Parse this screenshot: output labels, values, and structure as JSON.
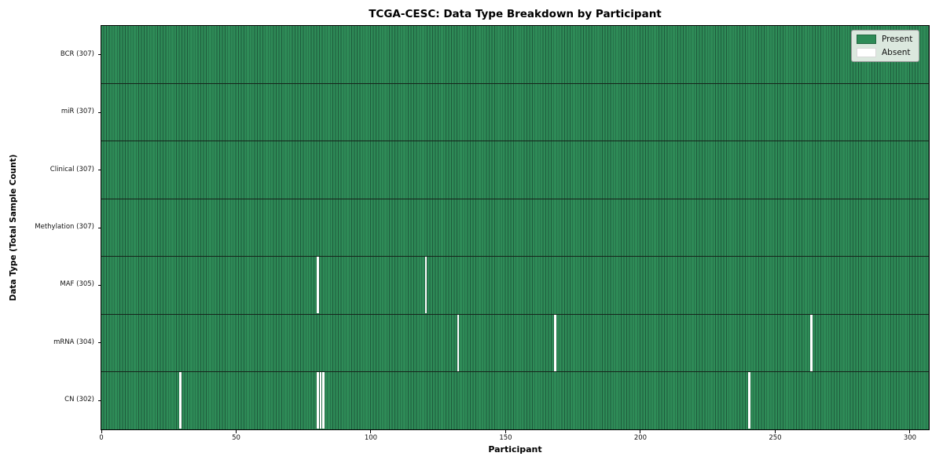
{
  "colors": {
    "present": "#2e8b57",
    "absent": "#ffffff",
    "cell_border": "#1e5b3c",
    "row_separator": "#15241b",
    "legend_bg": "#dbe8de",
    "legend_border": "#9a9a9a",
    "axis_color": "#000000"
  },
  "chart_data": {
    "type": "heatmap",
    "title": "TCGA-CESC: Data Type Breakdown by Participant",
    "xlabel": "Participant",
    "ylabel": "Data Type (Total Sample Count)",
    "x_ticks": [
      0,
      50,
      100,
      150,
      200,
      250,
      300
    ],
    "x_range": [
      0,
      307
    ],
    "n_participants": 307,
    "grid": false,
    "legend_position": "upper right",
    "legend_entries": [
      "Present",
      "Absent"
    ],
    "value_encoding": {
      "present": 1,
      "absent": 0
    },
    "rows": [
      {
        "label": "BCR (307)",
        "data_type": "BCR",
        "present_count": 307,
        "absent_count": 0,
        "absent_participants": []
      },
      {
        "label": "miR (307)",
        "data_type": "miR",
        "present_count": 307,
        "absent_count": 0,
        "absent_participants": []
      },
      {
        "label": "Clinical (307)",
        "data_type": "Clinical",
        "present_count": 307,
        "absent_count": 0,
        "absent_participants": []
      },
      {
        "label": "Methylation (307)",
        "data_type": "Methylation",
        "present_count": 307,
        "absent_count": 0,
        "absent_participants": []
      },
      {
        "label": "MAF (305)",
        "data_type": "MAF",
        "present_count": 305,
        "absent_count": 2,
        "absent_participants": [
          80,
          120
        ]
      },
      {
        "label": "mRNA (304)",
        "data_type": "mRNA",
        "present_count": 304,
        "absent_count": 3,
        "absent_participants": [
          132,
          168,
          263
        ]
      },
      {
        "label": "CN (302)",
        "data_type": "CN",
        "present_count": 302,
        "absent_count": 5,
        "absent_participants": [
          29,
          80,
          81,
          82,
          240
        ]
      }
    ]
  }
}
